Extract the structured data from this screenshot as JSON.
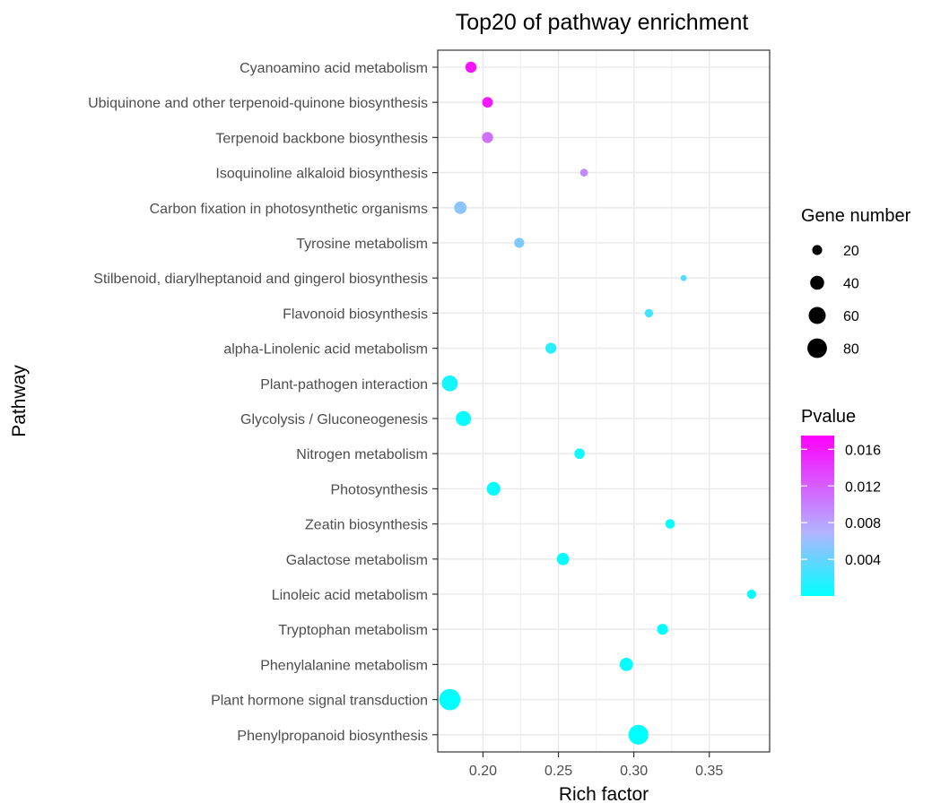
{
  "chart_data": {
    "type": "scatter",
    "title": "Top20 of pathway enrichment",
    "xlabel": "Rich factor",
    "ylabel": "Pathway",
    "xlim": [
      0.17,
      0.39
    ],
    "x_ticks": [
      0.2,
      0.25,
      0.3,
      0.35
    ],
    "x_tick_labels": [
      "0.20",
      "0.25",
      "0.30",
      "0.35"
    ],
    "grid": true,
    "categories": [
      "Cyanoamino acid metabolism",
      "Ubiquinone and other terpenoid-quinone biosynthesis",
      "Terpenoid backbone biosynthesis",
      "Isoquinoline alkaloid biosynthesis",
      "Carbon fixation in photosynthetic organisms",
      "Tyrosine metabolism",
      "Stilbenoid, diarylheptanoid and gingerol biosynthesis",
      "Flavonoid biosynthesis",
      "alpha-Linolenic acid metabolism",
      "Plant-pathogen interaction",
      "Glycolysis / Gluconeogenesis",
      "Nitrogen metabolism",
      "Photosynthesis",
      "Zeatin biosynthesis",
      "Galactose metabolism",
      "Linoleic acid metabolism",
      "Tryptophan metabolism",
      "Phenylalanine metabolism",
      "Plant hormone signal transduction",
      "Phenylpropanoid biosynthesis"
    ],
    "points": [
      {
        "pathway": "Cyanoamino acid metabolism",
        "rich_factor": 0.192,
        "gene_number": 25,
        "pvalue": 0.0165
      },
      {
        "pathway": "Ubiquinone and other terpenoid-quinone biosynthesis",
        "rich_factor": 0.203,
        "gene_number": 23,
        "pvalue": 0.016
      },
      {
        "pathway": "Terpenoid backbone biosynthesis",
        "rich_factor": 0.203,
        "gene_number": 25,
        "pvalue": 0.011
      },
      {
        "pathway": "Isoquinoline alkaloid biosynthesis",
        "rich_factor": 0.267,
        "gene_number": 12,
        "pvalue": 0.0095
      },
      {
        "pathway": "Carbon fixation in photosynthetic organisms",
        "rich_factor": 0.185,
        "gene_number": 32,
        "pvalue": 0.0055
      },
      {
        "pathway": "Tyrosine metabolism",
        "rich_factor": 0.224,
        "gene_number": 20,
        "pvalue": 0.005
      },
      {
        "pathway": "Stilbenoid, diarylheptanoid and gingerol biosynthesis",
        "rich_factor": 0.333,
        "gene_number": 7,
        "pvalue": 0.003
      },
      {
        "pathway": "Flavonoid biosynthesis",
        "rich_factor": 0.31,
        "gene_number": 14,
        "pvalue": 0.0025
      },
      {
        "pathway": "alpha-Linolenic acid metabolism",
        "rich_factor": 0.245,
        "gene_number": 24,
        "pvalue": 0.0015
      },
      {
        "pathway": "Plant-pathogen interaction",
        "rich_factor": 0.178,
        "gene_number": 52,
        "pvalue": 0.0008
      },
      {
        "pathway": "Glycolysis / Gluconeogenesis",
        "rich_factor": 0.187,
        "gene_number": 47,
        "pvalue": 0.0004
      },
      {
        "pathway": "Nitrogen metabolism",
        "rich_factor": 0.264,
        "gene_number": 22,
        "pvalue": 0.0005
      },
      {
        "pathway": "Photosynthesis",
        "rich_factor": 0.207,
        "gene_number": 38,
        "pvalue": 0.0002
      },
      {
        "pathway": "Zeatin biosynthesis",
        "rich_factor": 0.324,
        "gene_number": 18,
        "pvalue": 0.0003
      },
      {
        "pathway": "Galactose metabolism",
        "rich_factor": 0.253,
        "gene_number": 31,
        "pvalue": 0.0002
      },
      {
        "pathway": "Linoleic acid metabolism",
        "rich_factor": 0.378,
        "gene_number": 17,
        "pvalue": 0.0002
      },
      {
        "pathway": "Tryptophan metabolism",
        "rich_factor": 0.319,
        "gene_number": 24,
        "pvalue": 0.0001
      },
      {
        "pathway": "Phenylalanine metabolism",
        "rich_factor": 0.295,
        "gene_number": 36,
        "pvalue": 0.0001
      },
      {
        "pathway": "Plant hormone signal transduction",
        "rich_factor": 0.178,
        "gene_number": 95,
        "pvalue": 1e-05
      },
      {
        "pathway": "Phenylpropanoid biosynthesis",
        "rich_factor": 0.303,
        "gene_number": 82,
        "pvalue": 1e-05
      }
    ],
    "size_legend": {
      "title": "Gene number",
      "values": [
        20,
        40,
        60,
        80
      ],
      "labels": [
        "20",
        "40",
        "60",
        "80"
      ]
    },
    "color_legend": {
      "title": "Pvalue",
      "range": [
        0,
        0.0175
      ],
      "ticks": [
        0.004,
        0.008,
        0.012,
        0.016
      ],
      "tick_labels": [
        "0.004",
        "0.008",
        "0.012",
        "0.016"
      ],
      "low_color": "#00ffff",
      "mid_color": "#b3b3ff",
      "high_color": "#ff00ff"
    }
  }
}
